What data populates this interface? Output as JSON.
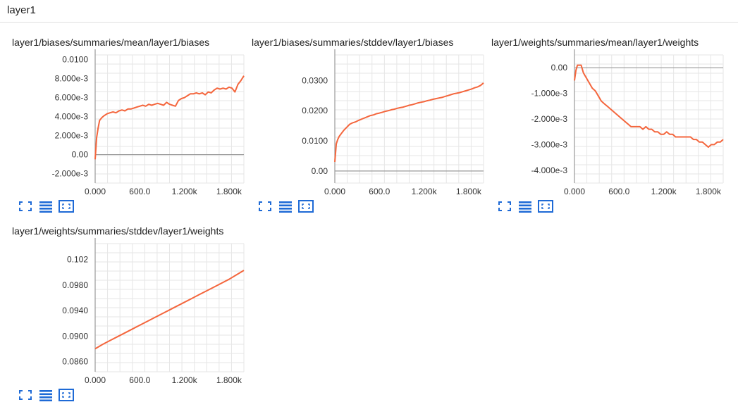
{
  "header": {
    "title": "layer1"
  },
  "theme": {
    "line_color": "#f4663d",
    "icon_color": "#1e6ad6",
    "grid_color": "#e6e6e6",
    "axis_color": "#999999"
  },
  "icons": {
    "fit": "fit-domain-icon",
    "log": "log-scale-icon",
    "expand": "expand-icon"
  },
  "chart_data": [
    {
      "type": "line",
      "title": "layer1/biases/summaries/mean/layer1/biases",
      "xlabel": "",
      "ylabel": "",
      "xlim": [
        0,
        2000
      ],
      "ylim": [
        -0.003,
        0.0105
      ],
      "x_ticks": [
        0,
        600,
        1200,
        1800
      ],
      "x_tick_labels": [
        "0.000",
        "600.0",
        "1.200k",
        "1.800k"
      ],
      "y_ticks": [
        -0.002,
        0,
        0.002,
        0.004,
        0.006,
        0.008,
        0.01
      ],
      "y_tick_labels": [
        "-2.000e-3",
        "0.00",
        "2.000e-3",
        "4.000e-3",
        "6.000e-3",
        "8.000e-3",
        "0.0100"
      ],
      "grid": true,
      "series": [
        {
          "x": [
            0,
            20,
            40,
            60,
            90,
            120,
            160,
            200,
            240,
            280,
            320,
            360,
            400,
            440,
            480,
            520,
            560,
            600,
            640,
            680,
            720,
            760,
            800,
            840,
            880,
            920,
            960,
            1000,
            1040,
            1080,
            1120,
            1160,
            1200,
            1240,
            1280,
            1320,
            1360,
            1400,
            1440,
            1480,
            1520,
            1560,
            1600,
            1640,
            1680,
            1720,
            1760,
            1800,
            1840,
            1880,
            1920,
            1960,
            2000
          ],
          "y": [
            -0.0005,
            0.0018,
            0.0028,
            0.0036,
            0.0039,
            0.0041,
            0.0043,
            0.0044,
            0.0045,
            0.0044,
            0.0046,
            0.0047,
            0.0046,
            0.0048,
            0.0048,
            0.0049,
            0.005,
            0.0051,
            0.0052,
            0.0051,
            0.0053,
            0.0052,
            0.0053,
            0.0054,
            0.0053,
            0.0052,
            0.0055,
            0.0053,
            0.0052,
            0.0051,
            0.0057,
            0.0059,
            0.006,
            0.0062,
            0.0064,
            0.0064,
            0.0065,
            0.0064,
            0.0065,
            0.0063,
            0.0066,
            0.0065,
            0.0068,
            0.007,
            0.0069,
            0.007,
            0.0069,
            0.0071,
            0.007,
            0.0066,
            0.0074,
            0.0078,
            0.0083
          ]
        }
      ]
    },
    {
      "type": "line",
      "title": "layer1/biases/summaries/stddev/layer1/biases",
      "xlabel": "",
      "ylabel": "",
      "xlim": [
        0,
        2000
      ],
      "ylim": [
        -0.004,
        0.0385
      ],
      "x_ticks": [
        0,
        600,
        1200,
        1800
      ],
      "x_tick_labels": [
        "0.000",
        "600.0",
        "1.200k",
        "1.800k"
      ],
      "y_ticks": [
        0,
        0.01,
        0.02,
        0.03
      ],
      "y_tick_labels": [
        "0.00",
        "0.0100",
        "0.0200",
        "0.0300"
      ],
      "grid": true,
      "series": [
        {
          "x": [
            0,
            20,
            40,
            60,
            90,
            120,
            160,
            200,
            240,
            280,
            320,
            360,
            400,
            440,
            480,
            520,
            560,
            600,
            640,
            680,
            720,
            760,
            800,
            840,
            880,
            920,
            960,
            1000,
            1040,
            1080,
            1120,
            1160,
            1200,
            1240,
            1280,
            1320,
            1360,
            1400,
            1440,
            1480,
            1520,
            1560,
            1600,
            1640,
            1680,
            1720,
            1760,
            1800,
            1840,
            1880,
            1920,
            1960,
            2000
          ],
          "y": [
            0.003,
            0.009,
            0.0105,
            0.0115,
            0.0125,
            0.0135,
            0.0145,
            0.0155,
            0.016,
            0.0163,
            0.0168,
            0.0172,
            0.0176,
            0.018,
            0.0184,
            0.0186,
            0.019,
            0.0192,
            0.0195,
            0.0198,
            0.02,
            0.0203,
            0.0205,
            0.0208,
            0.021,
            0.0212,
            0.0215,
            0.0218,
            0.022,
            0.0223,
            0.0226,
            0.0228,
            0.023,
            0.0233,
            0.0235,
            0.0238,
            0.024,
            0.0242,
            0.0244,
            0.0247,
            0.025,
            0.0253,
            0.0256,
            0.0258,
            0.026,
            0.0263,
            0.0266,
            0.0269,
            0.0272,
            0.0276,
            0.0279,
            0.0284,
            0.0292
          ]
        }
      ]
    },
    {
      "type": "line",
      "title": "layer1/weights/summaries/mean/layer1/weights",
      "xlabel": "",
      "ylabel": "",
      "xlim": [
        0,
        2000
      ],
      "ylim": [
        -0.0045,
        0.0005
      ],
      "x_ticks": [
        0,
        600,
        1200,
        1800
      ],
      "x_tick_labels": [
        "0.000",
        "600.0",
        "1.200k",
        "1.800k"
      ],
      "y_ticks": [
        -0.004,
        -0.003,
        -0.002,
        -0.001,
        0
      ],
      "y_tick_labels": [
        "-4.000e-3",
        "-3.000e-3",
        "-2.000e-3",
        "-1.000e-3",
        "0.00"
      ],
      "grid": true,
      "series": [
        {
          "x": [
            0,
            20,
            40,
            60,
            90,
            120,
            160,
            200,
            240,
            280,
            320,
            360,
            400,
            440,
            480,
            520,
            560,
            600,
            640,
            680,
            720,
            760,
            800,
            840,
            880,
            920,
            960,
            1000,
            1040,
            1080,
            1120,
            1160,
            1200,
            1240,
            1280,
            1320,
            1360,
            1400,
            1440,
            1480,
            1520,
            1560,
            1600,
            1640,
            1680,
            1720,
            1760,
            1800,
            1840,
            1880,
            1920,
            1960,
            2000
          ],
          "y": [
            -0.0005,
            -0.0001,
            0.0001,
            0.0001,
            0.0001,
            -0.0002,
            -0.0004,
            -0.0006,
            -0.0008,
            -0.0009,
            -0.0011,
            -0.0013,
            -0.0014,
            -0.0015,
            -0.0016,
            -0.0017,
            -0.0018,
            -0.0019,
            -0.002,
            -0.0021,
            -0.0022,
            -0.0023,
            -0.0023,
            -0.0023,
            -0.0023,
            -0.0024,
            -0.0023,
            -0.0024,
            -0.0024,
            -0.0025,
            -0.0025,
            -0.0026,
            -0.0026,
            -0.0025,
            -0.0026,
            -0.0026,
            -0.0027,
            -0.0027,
            -0.0027,
            -0.0027,
            -0.0027,
            -0.0027,
            -0.0028,
            -0.0028,
            -0.0029,
            -0.0029,
            -0.003,
            -0.0031,
            -0.003,
            -0.003,
            -0.0029,
            -0.0029,
            -0.0028
          ]
        }
      ]
    },
    {
      "type": "line",
      "title": "layer1/weights/summaries/stddev/layer1/weights",
      "xlabel": "",
      "ylabel": "",
      "xlim": [
        0,
        2000
      ],
      "ylim": [
        0.0844,
        0.1045
      ],
      "x_ticks": [
        0,
        600,
        1200,
        1800
      ],
      "x_tick_labels": [
        "0.000",
        "600.0",
        "1.200k",
        "1.800k"
      ],
      "y_ticks": [
        0.086,
        0.09,
        0.094,
        0.098,
        0.102
      ],
      "y_tick_labels": [
        "0.0860",
        "0.0900",
        "0.0940",
        "0.0980",
        "0.102"
      ],
      "grid": true,
      "series": [
        {
          "x": [
            0,
            100,
            200,
            300,
            400,
            500,
            600,
            700,
            800,
            900,
            1000,
            1100,
            1200,
            1300,
            1400,
            1500,
            1600,
            1700,
            1800,
            1900,
            2000
          ],
          "y": [
            0.088,
            0.0887,
            0.0893,
            0.0899,
            0.0905,
            0.0911,
            0.0917,
            0.0923,
            0.0929,
            0.0935,
            0.0941,
            0.0947,
            0.0953,
            0.0959,
            0.0965,
            0.0971,
            0.0977,
            0.0983,
            0.0989,
            0.0996,
            0.1003
          ]
        }
      ]
    }
  ]
}
